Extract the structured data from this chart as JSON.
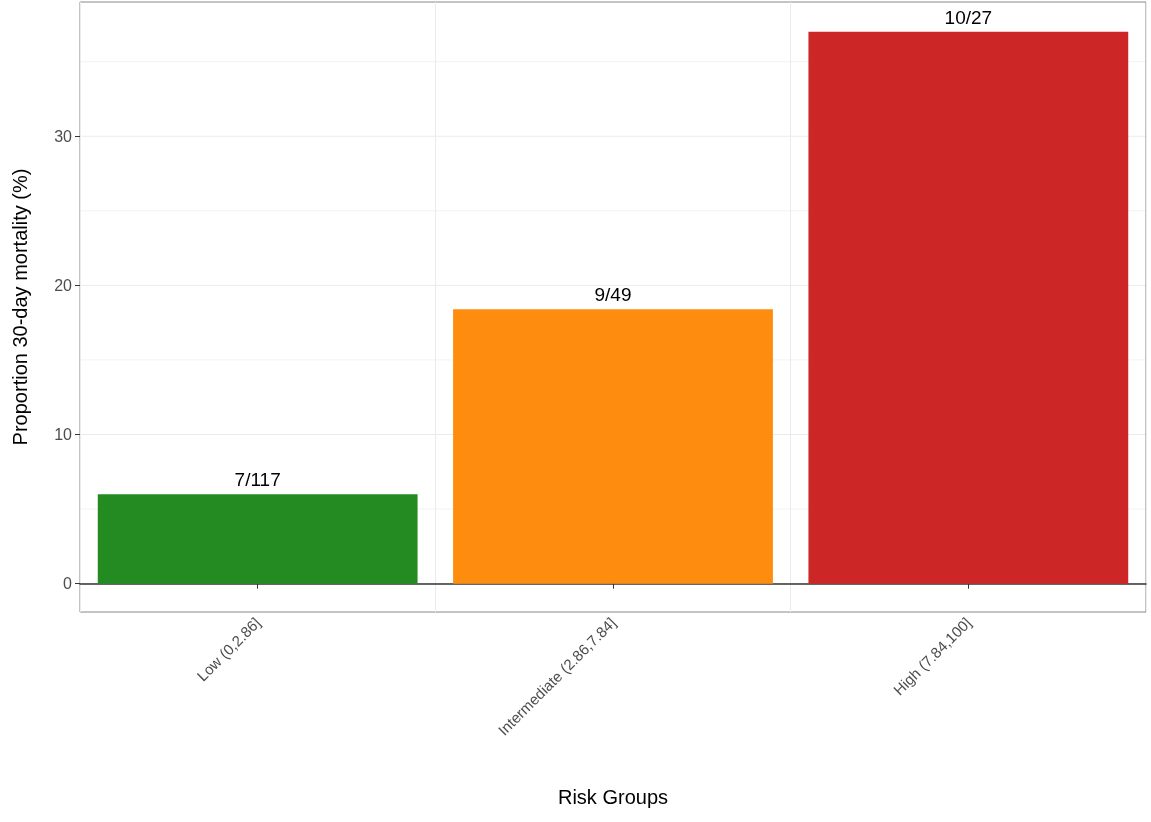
{
  "chart_data": {
    "type": "bar",
    "xlabel": "Risk Groups",
    "ylabel": "Proportion 30-day mortality (%)",
    "categories": [
      "Low (0,2.86]",
      "Intermediate (2.86,7.84]",
      "High (7.84,100]"
    ],
    "values": [
      6.0,
      18.4,
      37.0
    ],
    "colors": [
      "#238b22",
      "#fe8c0f",
      "#cd2627"
    ],
    "value_labels": [
      "7/117",
      "9/49",
      "10/27"
    ],
    "ylim": [
      -1.9,
      39
    ],
    "yticks": [
      0,
      {
        "value": 5,
        "label": null
      },
      10,
      {
        "value": 15,
        "label": null
      },
      20,
      {
        "value": 25,
        "label": null
      },
      30,
      {
        "value": 35,
        "label": null
      }
    ],
    "grid": true
  }
}
